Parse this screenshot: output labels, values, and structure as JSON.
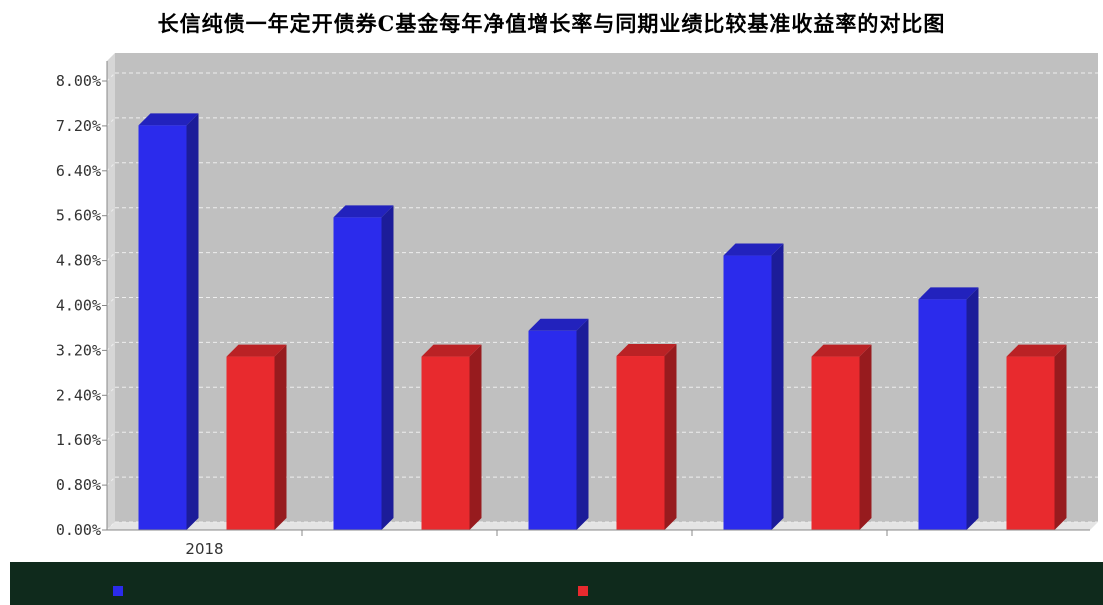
{
  "chart_data": {
    "type": "bar",
    "title": "长信纯债一年定开债券C基金每年净值增长率与同期业绩比较基准收益率的对比图",
    "categories": [
      "2018",
      "",
      "",
      "",
      ""
    ],
    "series": [
      {
        "color": "#2b2bec",
        "values": [
          7.21,
          5.57,
          3.55,
          4.89,
          4.11
        ]
      },
      {
        "color": "#e82a2e",
        "values": [
          3.09,
          3.09,
          3.1,
          3.09,
          3.09
        ]
      }
    ],
    "y_ticks": [
      "0.00%",
      "0.80%",
      "1.60%",
      "2.40%",
      "3.20%",
      "4.00%",
      "4.80%",
      "5.60%",
      "6.40%",
      "7.20%",
      "8.00%"
    ],
    "ylim": [
      0,
      8.0
    ],
    "grid": true,
    "legend": "bottom",
    "style": "3d"
  }
}
